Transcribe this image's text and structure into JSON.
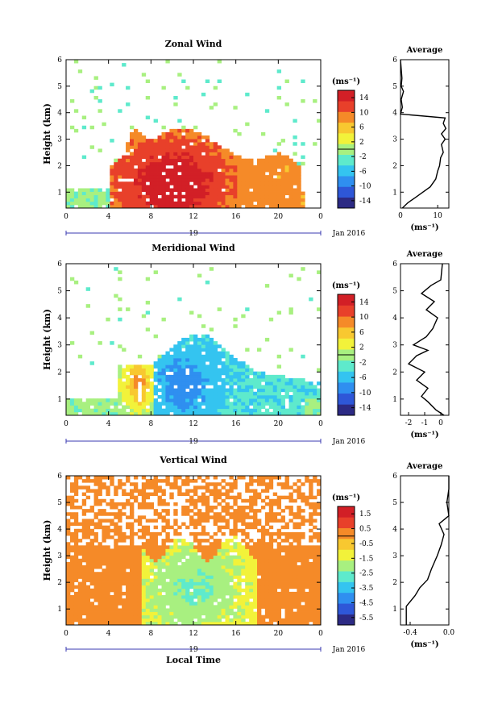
{
  "chart_data": [
    {
      "type": "heatmap",
      "title": "Zonal Wind",
      "ylabel": "Height (km)",
      "xlim": [
        0,
        24
      ],
      "ylim": [
        0.4,
        6
      ],
      "x_ticks": [
        "0",
        "4",
        "8",
        "12",
        "16",
        "20",
        "0"
      ],
      "y_ticks": [
        "1",
        "2",
        "3",
        "4",
        "5",
        "6"
      ],
      "date_axis": {
        "day": "19",
        "label": "Jan 2016"
      },
      "colorbar": {
        "unit": "(ms⁻¹)",
        "ticks": [
          "14",
          "10",
          "6",
          "2",
          "-2",
          "-6",
          "-10",
          "-14"
        ],
        "range": [
          -16,
          16
        ]
      },
      "profile": {
        "title": "Average",
        "xlabel": "(ms⁻¹)",
        "x_ticks": [
          "0",
          "10"
        ],
        "y_ticks": [
          "1",
          "2",
          "3",
          "4",
          "5",
          "6"
        ],
        "xlim": [
          0,
          13
        ],
        "ylim": [
          0.4,
          6
        ],
        "points": [
          [
            0.5,
            0.4
          ],
          [
            2,
            0.6
          ],
          [
            4,
            0.8
          ],
          [
            6,
            1.0
          ],
          [
            8,
            1.2
          ],
          [
            9.5,
            1.5
          ],
          [
            10,
            1.8
          ],
          [
            10.5,
            2.0
          ],
          [
            10.8,
            2.3
          ],
          [
            11.5,
            2.5
          ],
          [
            11,
            2.8
          ],
          [
            12,
            3.0
          ],
          [
            11,
            3.2
          ],
          [
            12.2,
            3.4
          ],
          [
            11.5,
            3.6
          ],
          [
            12,
            3.8
          ],
          [
            0,
            3.95
          ],
          [
            0.5,
            4.2
          ],
          [
            0.2,
            4.5
          ],
          [
            0.8,
            4.8
          ],
          [
            0.2,
            5.0
          ],
          [
            0.4,
            5.3
          ],
          [
            0,
            6.0
          ]
        ]
      }
    },
    {
      "type": "heatmap",
      "title": "Meridional Wind",
      "ylabel": "Height (km)",
      "xlim": [
        0,
        24
      ],
      "ylim": [
        0.4,
        6
      ],
      "x_ticks": [
        "0",
        "4",
        "8",
        "12",
        "16",
        "20",
        "0"
      ],
      "y_ticks": [
        "1",
        "2",
        "3",
        "4",
        "5",
        "6"
      ],
      "date_axis": {
        "day": "19",
        "label": "Jan 2016"
      },
      "colorbar": {
        "unit": "(ms⁻¹)",
        "ticks": [
          "14",
          "10",
          "6",
          "2",
          "-2",
          "-6",
          "-10",
          "-14"
        ],
        "range": [
          -16,
          16
        ]
      },
      "profile": {
        "title": "Average",
        "xlabel": "(ms⁻¹)",
        "x_ticks": [
          "-2",
          "-1",
          "0"
        ],
        "y_ticks": [
          "1",
          "2",
          "3",
          "4",
          "5",
          "6"
        ],
        "xlim": [
          -2.5,
          0.5
        ],
        "ylim": [
          0.4,
          6
        ],
        "points": [
          [
            0.2,
            0.4
          ],
          [
            -0.3,
            0.6
          ],
          [
            -0.8,
            0.9
          ],
          [
            -1.2,
            1.1
          ],
          [
            -0.8,
            1.4
          ],
          [
            -1.5,
            1.7
          ],
          [
            -1.0,
            2.0
          ],
          [
            -2.0,
            2.3
          ],
          [
            -1.5,
            2.6
          ],
          [
            -0.8,
            2.8
          ],
          [
            -1.7,
            3.0
          ],
          [
            -0.9,
            3.3
          ],
          [
            -0.5,
            3.6
          ],
          [
            -0.2,
            4.0
          ],
          [
            -0.9,
            4.3
          ],
          [
            -0.4,
            4.6
          ],
          [
            -1.2,
            4.9
          ],
          [
            -0.6,
            5.2
          ],
          [
            0,
            5.4
          ],
          [
            0.1,
            6.0
          ]
        ]
      }
    },
    {
      "type": "heatmap",
      "title": "Vertical Wind",
      "ylabel": "Height (km)",
      "xlabel": "Local Time",
      "xlim": [
        0,
        24
      ],
      "ylim": [
        0.4,
        6
      ],
      "x_ticks": [
        "0",
        "4",
        "8",
        "12",
        "16",
        "20",
        "0"
      ],
      "y_ticks": [
        "1",
        "2",
        "3",
        "4",
        "5",
        "6"
      ],
      "date_axis": {
        "day": "19",
        "label": "Jan 2016"
      },
      "colorbar": {
        "unit": "(ms⁻¹)",
        "ticks": [
          "1.5",
          "0.5",
          "-0.5",
          "-1.5",
          "-2.5",
          "-3.5",
          "-4.5",
          "-5.5"
        ],
        "range": [
          -6,
          2
        ]
      },
      "profile": {
        "title": "Average",
        "xlabel": "(ms⁻¹)",
        "x_ticks": [
          "-0.4",
          "0.0"
        ],
        "y_ticks": [
          "1",
          "2",
          "3",
          "4",
          "5",
          "6"
        ],
        "xlim": [
          -0.5,
          0.0
        ],
        "ylim": [
          0.4,
          6
        ],
        "points": [
          [
            -0.44,
            0.4
          ],
          [
            -0.44,
            1.1
          ],
          [
            -0.35,
            1.5
          ],
          [
            -0.3,
            1.8
          ],
          [
            -0.22,
            2.1
          ],
          [
            -0.18,
            2.5
          ],
          [
            -0.12,
            3.0
          ],
          [
            -0.08,
            3.4
          ],
          [
            -0.05,
            3.8
          ],
          [
            -0.1,
            4.2
          ],
          [
            0,
            4.5
          ],
          [
            -0.02,
            5.0
          ],
          [
            0,
            5.5
          ],
          [
            0,
            6.0
          ]
        ]
      }
    }
  ]
}
